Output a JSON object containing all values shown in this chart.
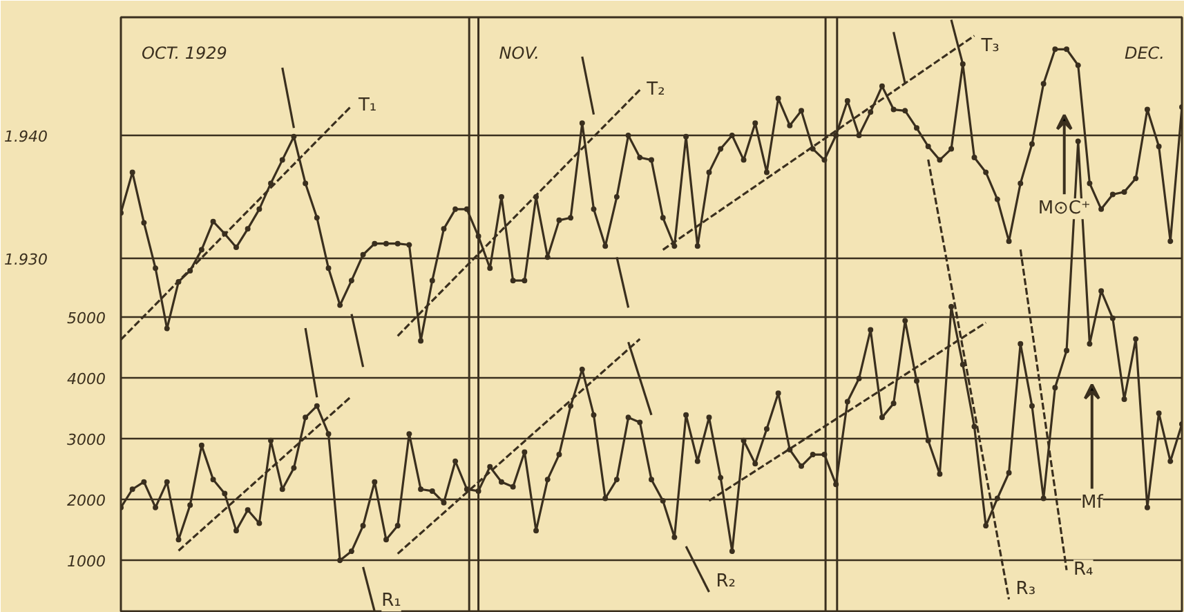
{
  "chart_data": {
    "type": "line",
    "categories": [
      null,
      null,
      null,
      null,
      null,
      null,
      null,
      null,
      null,
      null,
      null,
      null,
      null,
      null,
      null,
      null,
      null,
      null,
      null,
      null,
      null,
      null,
      null,
      null,
      null,
      null,
      null,
      null,
      null,
      null,
      null,
      null,
      null,
      null,
      null,
      null,
      null,
      null,
      null,
      null,
      null,
      null,
      null,
      null,
      null,
      null,
      null,
      null,
      null,
      null,
      null,
      null,
      null,
      null,
      null,
      null,
      null,
      null,
      null,
      null,
      null,
      null,
      null,
      null,
      null,
      null,
      null,
      null,
      null,
      null,
      null,
      null,
      null,
      null,
      null,
      null,
      null,
      null,
      null,
      null,
      null,
      null,
      null,
      null,
      null,
      null,
      null,
      null,
      null,
      null,
      null,
      null,
      null
    ],
    "ylim": [
      140,
      9930
    ],
    "yticks": [
      1000,
      2000,
      3000,
      4000,
      5000
    ],
    "y2lim": [
      1.9012,
      1.9496
    ],
    "y2ticks": [
      {
        "value": 1.93,
        "label": "1.930"
      },
      {
        "value": 1.94,
        "label": "1.940"
      }
    ],
    "grid": true,
    "marker": "circle",
    "tick_labels": "y",
    "series": [
      {
        "color": "#3a2f1e",
        "axis": "y2",
        "values": [
          1.9337,
          1.937,
          1.9329,
          1.9292,
          1.9243,
          1.9281,
          1.929,
          1.9307,
          1.933,
          1.932,
          1.9309,
          1.9324,
          1.934,
          1.9361,
          1.938,
          1.9399,
          1.9361,
          1.9333,
          1.9292,
          1.9262,
          1.9282,
          1.9303,
          1.9312,
          1.9312,
          1.9312,
          1.9311,
          1.9233,
          1.9282,
          1.9324,
          1.934,
          1.934,
          1.9318,
          1.9292,
          1.935,
          1.9282,
          1.9282,
          1.935,
          1.9301,
          1.9331,
          1.9333,
          1.941,
          1.934,
          1.931,
          1.935,
          1.94,
          1.9382,
          1.938,
          1.9333,
          1.931,
          1.9399,
          1.931,
          1.937,
          1.9389,
          1.94,
          1.938,
          1.941,
          1.937,
          1.943,
          1.9408,
          1.942,
          1.9389,
          1.938,
          1.94,
          1.9428,
          1.94,
          1.9419,
          1.944,
          1.9421,
          1.942,
          1.9406,
          1.9391,
          1.938,
          1.9389,
          1.9458,
          1.9382,
          1.937,
          1.9348,
          1.9314,
          1.9361,
          1.9393,
          1.9442,
          1.947,
          1.947,
          1.9457,
          1.9361,
          1.934,
          1.9352,
          1.9354,
          1.9365,
          1.9421,
          1.9391,
          1.9314,
          1.9423
        ]
      },
      {
        "color": "#3a2f1e",
        "values": [
          1870,
          2170,
          2290,
          1870,
          2290,
          1340,
          1910,
          2890,
          2330,
          2100,
          1490,
          1830,
          1610,
          2970,
          2170,
          2520,
          3350,
          3540,
          3080,
          1000,
          1150,
          1570,
          2290,
          1340,
          1570,
          3080,
          2170,
          2140,
          1950,
          2630,
          2170,
          2140,
          2540,
          2290,
          2210,
          2780,
          1490,
          2330,
          2740,
          3540,
          4140,
          3390,
          2020,
          2330,
          3350,
          3270,
          2330,
          1980,
          1380,
          3390,
          2630,
          3350,
          2360,
          1150,
          2970,
          2590,
          3160,
          3750,
          2820,
          2550,
          2740,
          2740,
          2250,
          3610,
          3990,
          4790,
          3350,
          3580,
          4940,
          3950,
          2970,
          2420,
          5170,
          4220,
          3200,
          1570,
          2020,
          2440,
          4560,
          3540,
          2020,
          3840,
          4450,
          7890,
          4560,
          5430,
          4980,
          3650,
          4640,
          1870,
          3420,
          2630,
          3240
        ]
      },
      {
        "name": "T₁",
        "color": "#3a2f1e",
        "axis": "y2",
        "line_style": "dashed",
        "marker": "none",
        "values": [
          1.9234,
          null,
          null,
          null,
          null,
          null,
          null,
          null,
          null,
          null,
          null,
          null,
          null,
          null,
          null,
          null,
          null,
          null,
          null,
          null,
          1.9424,
          null,
          null,
          null,
          null,
          null,
          null,
          null,
          null,
          null,
          null,
          null,
          null,
          null,
          null,
          null,
          null,
          null,
          null,
          null,
          null,
          null,
          null,
          null,
          null,
          null,
          null,
          null,
          null,
          null,
          null,
          null,
          null,
          null,
          null,
          null,
          null,
          null,
          null,
          null,
          null,
          null,
          null,
          null,
          null,
          null,
          null,
          null,
          null,
          null,
          null,
          null,
          null,
          null,
          null,
          null,
          null,
          null,
          null,
          null,
          null,
          null,
          null,
          null,
          null,
          null,
          null,
          null,
          null,
          null,
          null,
          null,
          null
        ]
      },
      {
        "name": "T₂",
        "color": "#3a2f1e",
        "axis": "y2",
        "line_style": "dashed",
        "marker": "none",
        "values": [
          null,
          null,
          null,
          null,
          null,
          null,
          null,
          null,
          null,
          null,
          null,
          null,
          null,
          null,
          null,
          null,
          null,
          null,
          null,
          null,
          null,
          null,
          null,
          null,
          1.9237,
          null,
          null,
          null,
          null,
          null,
          null,
          null,
          null,
          null,
          null,
          null,
          null,
          null,
          null,
          null,
          null,
          null,
          null,
          null,
          null,
          1.9437,
          null,
          null,
          null,
          null,
          null,
          null,
          null,
          null,
          null,
          null,
          null,
          null,
          null,
          null,
          null,
          null,
          null,
          null,
          null,
          null,
          null,
          null,
          null,
          null,
          null,
          null,
          null,
          null,
          null,
          null,
          null,
          null,
          null,
          null,
          null,
          null,
          null,
          null,
          null,
          null,
          null,
          null,
          null,
          null,
          null,
          null,
          null
        ]
      },
      {
        "name": "T₃",
        "color": "#3a2f1e",
        "axis": "y2",
        "line_style": "dashed",
        "marker": "none",
        "values": [
          null,
          null,
          null,
          null,
          null,
          null,
          null,
          null,
          null,
          null,
          null,
          null,
          null,
          null,
          null,
          null,
          null,
          null,
          null,
          null,
          null,
          null,
          null,
          null,
          null,
          null,
          null,
          null,
          null,
          null,
          null,
          null,
          null,
          null,
          null,
          null,
          null,
          null,
          null,
          null,
          null,
          null,
          null,
          null,
          null,
          null,
          null,
          1.9307,
          null,
          null,
          null,
          null,
          null,
          null,
          null,
          null,
          null,
          null,
          null,
          null,
          null,
          null,
          null,
          null,
          null,
          null,
          null,
          null,
          null,
          null,
          null,
          null,
          null,
          null,
          1.9481,
          null,
          null,
          null,
          null,
          null,
          null,
          null,
          null,
          null,
          null,
          null,
          null,
          null,
          null,
          null,
          null,
          null,
          null
        ]
      },
      {
        "color": "#3a2f1e",
        "line_style": "dashed",
        "marker": "none",
        "values": [
          null,
          null,
          null,
          null,
          null,
          1160,
          null,
          null,
          null,
          null,
          null,
          null,
          null,
          null,
          null,
          null,
          null,
          null,
          null,
          null,
          3700,
          null,
          null,
          null,
          null,
          null,
          null,
          null,
          null,
          null,
          null,
          null,
          null,
          null,
          null,
          null,
          null,
          null,
          null,
          null,
          null,
          null,
          null,
          null,
          null,
          null,
          null,
          null,
          null,
          null,
          null,
          null,
          null,
          null,
          null,
          null,
          null,
          null,
          null,
          null,
          null,
          null,
          null,
          null,
          null,
          null,
          null,
          null,
          null,
          null,
          null,
          null,
          null,
          null,
          null,
          null,
          null,
          null,
          null,
          null,
          null,
          null,
          null,
          null,
          null,
          null,
          null,
          null,
          null,
          null,
          null,
          null,
          null
        ]
      },
      {
        "color": "#3a2f1e",
        "line_style": "dashed",
        "marker": "none",
        "values": [
          null,
          null,
          null,
          null,
          null,
          null,
          null,
          null,
          null,
          null,
          null,
          null,
          null,
          null,
          null,
          null,
          null,
          null,
          null,
          null,
          null,
          null,
          null,
          null,
          1110,
          null,
          null,
          null,
          null,
          null,
          null,
          null,
          null,
          null,
          null,
          null,
          null,
          null,
          null,
          null,
          null,
          null,
          null,
          null,
          null,
          4640,
          null,
          null,
          null,
          null,
          null,
          null,
          null,
          null,
          null,
          null,
          null,
          null,
          null,
          null,
          null,
          null,
          null,
          null,
          null,
          null,
          null,
          null,
          null,
          null,
          null,
          null,
          null,
          null,
          null,
          null,
          null,
          null,
          null,
          null,
          null,
          null,
          null,
          null,
          null,
          null,
          null,
          null,
          null,
          null,
          null,
          null,
          null
        ]
      },
      {
        "color": "#3a2f1e",
        "line_style": "dashed",
        "marker": "none",
        "values": [
          null,
          null,
          null,
          null,
          null,
          null,
          null,
          null,
          null,
          null,
          null,
          null,
          null,
          null,
          null,
          null,
          null,
          null,
          null,
          null,
          null,
          null,
          null,
          null,
          null,
          null,
          null,
          null,
          null,
          null,
          null,
          null,
          null,
          null,
          null,
          null,
          null,
          null,
          null,
          null,
          null,
          null,
          null,
          null,
          null,
          null,
          null,
          null,
          null,
          null,
          null,
          1980,
          null,
          null,
          null,
          null,
          null,
          null,
          null,
          null,
          null,
          null,
          null,
          null,
          null,
          null,
          null,
          null,
          null,
          null,
          null,
          null,
          null,
          null,
          null,
          4910,
          null,
          null,
          null,
          null,
          null,
          null,
          null,
          null,
          null,
          null,
          null,
          null,
          null,
          null,
          null,
          null,
          null
        ]
      },
      {
        "color": "#3a2f1e",
        "axis": "y2",
        "marker": "none",
        "values": [
          null,
          null,
          null,
          null,
          null,
          null,
          null,
          null,
          null,
          null,
          null,
          null,
          null,
          null,
          1.9455,
          1.9406,
          null,
          null,
          null,
          null,
          null,
          null,
          null,
          null,
          null,
          null,
          null,
          null,
          null,
          null,
          null,
          null,
          null,
          null,
          null,
          null,
          null,
          null,
          null,
          null,
          null,
          null,
          null,
          null,
          null,
          null,
          null,
          null,
          null,
          null,
          null,
          null,
          null,
          null,
          null,
          null,
          null,
          null,
          null,
          null,
          null,
          null,
          null,
          null,
          null,
          null,
          null,
          null,
          null,
          null,
          null,
          null,
          null,
          null,
          null,
          null,
          null,
          null,
          null,
          null,
          null,
          null,
          null,
          null,
          null,
          null,
          null,
          null,
          null,
          null,
          null,
          null,
          null
        ]
      },
      {
        "color": "#3a2f1e",
        "axis": "y2",
        "marker": "none",
        "values": [
          null,
          null,
          null,
          null,
          null,
          null,
          null,
          null,
          null,
          null,
          null,
          null,
          null,
          null,
          null,
          null,
          null,
          null,
          null,
          null,
          null,
          null,
          null,
          null,
          null,
          null,
          null,
          null,
          null,
          null,
          null,
          null,
          null,
          null,
          null,
          null,
          null,
          null,
          null,
          null,
          1.9464,
          1.9417,
          null,
          null,
          null,
          null,
          null,
          null,
          null,
          null,
          null,
          null,
          null,
          null,
          null,
          null,
          null,
          null,
          null,
          null,
          null,
          null,
          null,
          null,
          null,
          null,
          null,
          null,
          null,
          null,
          null,
          null,
          null,
          null,
          null,
          null,
          null,
          null,
          null,
          null,
          null,
          null,
          null,
          null,
          null,
          null,
          null,
          null,
          null,
          null,
          null,
          null,
          null
        ]
      },
      {
        "color": "#3a2f1e",
        "axis": "y2",
        "marker": "none",
        "values": [
          null,
          null,
          null,
          null,
          null,
          null,
          null,
          null,
          null,
          null,
          null,
          null,
          null,
          null,
          null,
          null,
          null,
          null,
          null,
          null,
          null,
          null,
          null,
          null,
          null,
          null,
          null,
          null,
          null,
          null,
          null,
          null,
          null,
          null,
          null,
          null,
          null,
          null,
          null,
          null,
          null,
          null,
          null,
          1.9301,
          1.926,
          null,
          null,
          null,
          null,
          null,
          null,
          null,
          null,
          null,
          null,
          null,
          null,
          null,
          null,
          null,
          null,
          null,
          null,
          null,
          null,
          null,
          null,
          null,
          null,
          null,
          null,
          null,
          null,
          null,
          null,
          null,
          null,
          null,
          null,
          null,
          null,
          null,
          null,
          null,
          null,
          null,
          null,
          null,
          null,
          null,
          null,
          null,
          null
        ]
      },
      {
        "color": "#3a2f1e",
        "axis": "y2",
        "marker": "none",
        "values": [
          null,
          null,
          null,
          null,
          null,
          null,
          null,
          null,
          null,
          null,
          null,
          null,
          null,
          null,
          null,
          null,
          null,
          null,
          null,
          null,
          null,
          null,
          null,
          null,
          null,
          null,
          null,
          null,
          null,
          null,
          null,
          null,
          null,
          null,
          null,
          null,
          null,
          null,
          null,
          null,
          null,
          null,
          null,
          null,
          null,
          null,
          null,
          null,
          null,
          null,
          null,
          null,
          null,
          null,
          null,
          null,
          null,
          null,
          null,
          null,
          null,
          null,
          null,
          null,
          null,
          null,
          null,
          1.9484,
          1.9442,
          null,
          null,
          null,
          null,
          null,
          null,
          null,
          null,
          null,
          null,
          null,
          null,
          null,
          null,
          null,
          null,
          null,
          null,
          null,
          null,
          null,
          null,
          null,
          null
        ]
      },
      {
        "color": "#3a2f1e",
        "axis": "y2",
        "marker": "none",
        "values": [
          null,
          null,
          null,
          null,
          null,
          null,
          null,
          null,
          null,
          null,
          null,
          null,
          null,
          null,
          null,
          null,
          null,
          null,
          null,
          null,
          null,
          null,
          null,
          null,
          null,
          null,
          null,
          null,
          null,
          null,
          null,
          null,
          null,
          null,
          null,
          null,
          null,
          null,
          null,
          null,
          null,
          null,
          null,
          null,
          null,
          null,
          null,
          null,
          null,
          null,
          null,
          null,
          null,
          null,
          null,
          null,
          null,
          null,
          null,
          null,
          null,
          null,
          null,
          null,
          null,
          null,
          null,
          null,
          null,
          null,
          null,
          null,
          1.9494,
          1.9458,
          null,
          null,
          null,
          null,
          null,
          null,
          null,
          null,
          null,
          null,
          null,
          null,
          null,
          null,
          null,
          null,
          null,
          null,
          null
        ]
      },
      {
        "color": "#3a2f1e",
        "marker": "none",
        "values": [
          null,
          null,
          null,
          null,
          null,
          null,
          null,
          null,
          null,
          null,
          null,
          null,
          null,
          null,
          null,
          null,
          null,
          null,
          null,
          null,
          5050,
          4180,
          null,
          null,
          null,
          null,
          null,
          null,
          null,
          null,
          null,
          null,
          null,
          null,
          null,
          null,
          null,
          null,
          null,
          null,
          null,
          null,
          null,
          null,
          null,
          null,
          null,
          null,
          null,
          null,
          null,
          null,
          null,
          null,
          null,
          null,
          null,
          null,
          null,
          null,
          null,
          null,
          null,
          null,
          null,
          null,
          null,
          null,
          null,
          null,
          null,
          null,
          null,
          null,
          null,
          null,
          null,
          null,
          null,
          null,
          null,
          null,
          null,
          null,
          null,
          null,
          null,
          null,
          null,
          null,
          null,
          null,
          null
        ]
      },
      {
        "color": "#3a2f1e",
        "marker": "none",
        "values": [
          null,
          null,
          null,
          null,
          null,
          null,
          null,
          null,
          null,
          null,
          null,
          null,
          null,
          null,
          null,
          null,
          4820,
          3680,
          null,
          null,
          null,
          null,
          null,
          null,
          null,
          null,
          null,
          null,
          null,
          null,
          null,
          null,
          null,
          null,
          null,
          null,
          null,
          null,
          null,
          null,
          null,
          null,
          null,
          null,
          null,
          null,
          null,
          null,
          null,
          null,
          null,
          null,
          null,
          null,
          null,
          null,
          null,
          null,
          null,
          null,
          null,
          null,
          null,
          null,
          null,
          null,
          null,
          null,
          null,
          null,
          null,
          null,
          null,
          null,
          null,
          null,
          null,
          null,
          null,
          null,
          null,
          null,
          null,
          null,
          null,
          null,
          null,
          null,
          null,
          null,
          null,
          null,
          null
        ]
      },
      {
        "color": "#3a2f1e",
        "marker": "none",
        "values": [
          null,
          null,
          null,
          null,
          null,
          null,
          null,
          null,
          null,
          null,
          null,
          null,
          null,
          null,
          null,
          null,
          null,
          null,
          null,
          null,
          null,
          null,
          null,
          null,
          null,
          null,
          null,
          null,
          null,
          null,
          null,
          null,
          null,
          null,
          null,
          null,
          null,
          null,
          null,
          null,
          null,
          null,
          null,
          null,
          4590,
          null,
          3390,
          null,
          null,
          null,
          null,
          null,
          null,
          null,
          null,
          null,
          null,
          null,
          null,
          null,
          null,
          null,
          null,
          null,
          null,
          null,
          null,
          null,
          null,
          null,
          null,
          null,
          null,
          null,
          null,
          null,
          null,
          null,
          null,
          null,
          null,
          null,
          null,
          null,
          null,
          null,
          null,
          null,
          null,
          null,
          null,
          null,
          null
        ]
      },
      {
        "name": "R₁",
        "color": "#3a2f1e",
        "marker": "none",
        "values": [
          null,
          null,
          null,
          null,
          null,
          null,
          null,
          null,
          null,
          null,
          null,
          null,
          null,
          null,
          null,
          null,
          null,
          null,
          null,
          null,
          null,
          890,
          160,
          null,
          null,
          null,
          null,
          null,
          null,
          null,
          null,
          null,
          null,
          null,
          null,
          null,
          null,
          null,
          null,
          null,
          null,
          null,
          null,
          null,
          null,
          null,
          null,
          null,
          null,
          null,
          null,
          null,
          null,
          null,
          null,
          null,
          null,
          null,
          null,
          null,
          null,
          null,
          null,
          null,
          null,
          null,
          null,
          null,
          null,
          null,
          null,
          null,
          null,
          null,
          null,
          null,
          null,
          null,
          null,
          null,
          null,
          null,
          null,
          null,
          null,
          null,
          null,
          null,
          null,
          null,
          null,
          null,
          null
        ]
      },
      {
        "name": "R₂",
        "color": "#3a2f1e",
        "marker": "none",
        "values": [
          null,
          null,
          null,
          null,
          null,
          null,
          null,
          null,
          null,
          null,
          null,
          null,
          null,
          null,
          null,
          null,
          null,
          null,
          null,
          null,
          null,
          null,
          null,
          null,
          null,
          null,
          null,
          null,
          null,
          null,
          null,
          null,
          null,
          null,
          null,
          null,
          null,
          null,
          null,
          null,
          null,
          null,
          null,
          null,
          null,
          null,
          null,
          null,
          null,
          1230,
          null,
          480,
          null,
          null,
          null,
          null,
          null,
          null,
          null,
          null,
          null,
          null,
          null,
          null,
          null,
          null,
          null,
          null,
          null,
          null,
          null,
          null,
          null,
          null,
          null,
          null,
          null,
          null,
          null,
          null,
          null,
          null,
          null,
          null,
          null,
          null,
          null,
          null,
          null,
          null,
          null,
          null,
          null
        ]
      },
      {
        "name": "R₃",
        "color": "#3a2f1e",
        "line_style": "dashed",
        "marker": "none",
        "values": [
          null,
          null,
          null,
          null,
          null,
          null,
          null,
          null,
          null,
          null,
          null,
          null,
          null,
          null,
          null,
          null,
          null,
          null,
          null,
          null,
          null,
          null,
          null,
          null,
          null,
          null,
          null,
          null,
          null,
          null,
          null,
          null,
          null,
          null,
          null,
          null,
          null,
          null,
          null,
          null,
          null,
          null,
          null,
          null,
          null,
          null,
          null,
          null,
          null,
          null,
          null,
          null,
          null,
          null,
          null,
          null,
          null,
          null,
          null,
          null,
          null,
          null,
          null,
          null,
          null,
          null,
          null,
          null,
          null,
          null,
          7590,
          null,
          null,
          null,
          null,
          null,
          null,
          360,
          null,
          null,
          null,
          null,
          null,
          null,
          null,
          null,
          null,
          null,
          null,
          null,
          null,
          null,
          null
        ]
      },
      {
        "name": "R₄",
        "color": "#3a2f1e",
        "line_style": "dashed",
        "marker": "none",
        "values": [
          null,
          null,
          null,
          null,
          null,
          null,
          null,
          null,
          null,
          null,
          null,
          null,
          null,
          null,
          null,
          null,
          null,
          null,
          null,
          null,
          null,
          null,
          null,
          null,
          null,
          null,
          null,
          null,
          null,
          null,
          null,
          null,
          null,
          null,
          null,
          null,
          null,
          null,
          null,
          null,
          null,
          null,
          null,
          null,
          null,
          null,
          null,
          null,
          null,
          null,
          null,
          null,
          null,
          null,
          null,
          null,
          null,
          null,
          null,
          null,
          null,
          null,
          null,
          null,
          null,
          null,
          null,
          null,
          null,
          null,
          null,
          null,
          null,
          null,
          null,
          null,
          null,
          null,
          6110,
          null,
          null,
          null,
          840,
          null,
          null,
          null,
          null,
          null,
          null,
          null,
          null,
          null,
          null
        ]
      }
    ],
    "annotations": [
      "OCT. 1929",
      "NOV.",
      "DEC.",
      "M⊙C⁺",
      "Mf"
    ]
  }
}
